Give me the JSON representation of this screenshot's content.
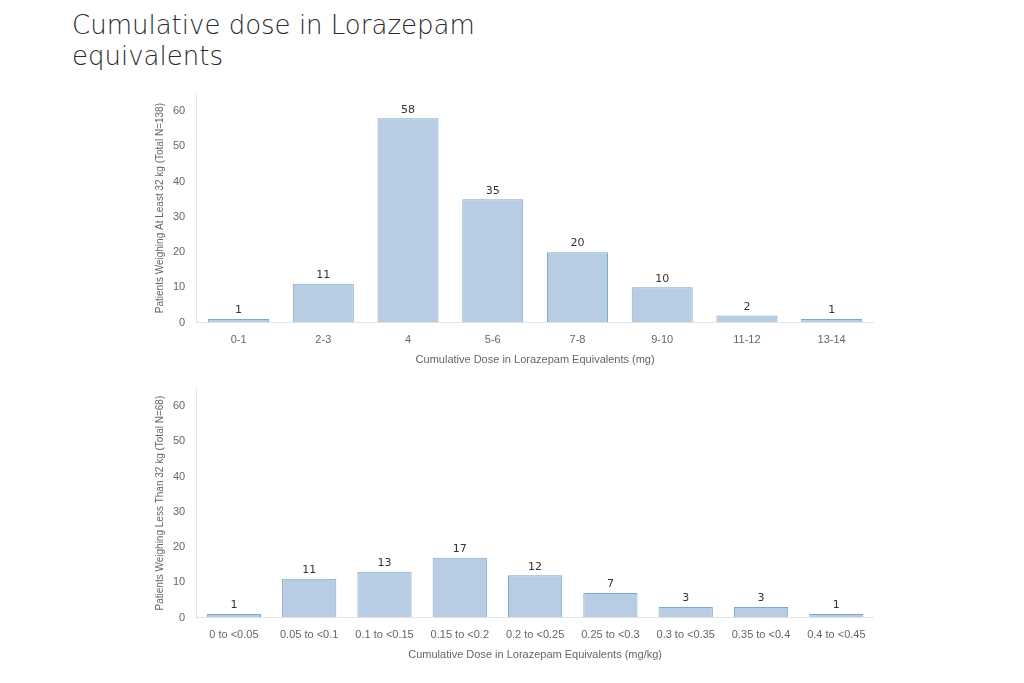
{
  "title": "Cumulative dose in Lorazepam\nequivalents",
  "chart_data": [
    {
      "type": "bar",
      "categories": [
        "0-1",
        "2-3",
        "4",
        "5-6",
        "7-8",
        "9-10",
        "11-12",
        "13-14"
      ],
      "values": [
        1,
        11,
        58,
        35,
        20,
        10,
        2,
        1
      ],
      "color": "#b8cce4",
      "ylabel": "Patients Weighing At Least 32 kg (Total N=138)",
      "xlabel": "Cumulative Dose in Lorazepam Equivalents (mg)",
      "ylim": [
        0,
        65
      ],
      "yticks": [
        0,
        10,
        20,
        30,
        40,
        50,
        60
      ],
      "grid": false,
      "data_labels": true
    },
    {
      "type": "bar",
      "categories": [
        "0 to <0.05",
        "0.05 to <0.1",
        "0.1 to <0.15",
        "0.15 to <0.2",
        "0.2 to <0.25",
        "0.25 to <0.3",
        "0.3 to <0.35",
        "0.35 to <0.4",
        "0.4 to <0.45"
      ],
      "values": [
        1,
        11,
        13,
        17,
        12,
        7,
        3,
        3,
        1
      ],
      "color": "#b8cce4",
      "ylabel": "Patients Weighing Less Than 32 kg (Total N=68)",
      "xlabel": "Cumulative Dose in Lorazepam Equivalents (mg/kg)",
      "ylim": [
        0,
        65
      ],
      "yticks": [
        0,
        10,
        20,
        30,
        40,
        50,
        60
      ],
      "grid": false,
      "data_labels": true
    }
  ]
}
